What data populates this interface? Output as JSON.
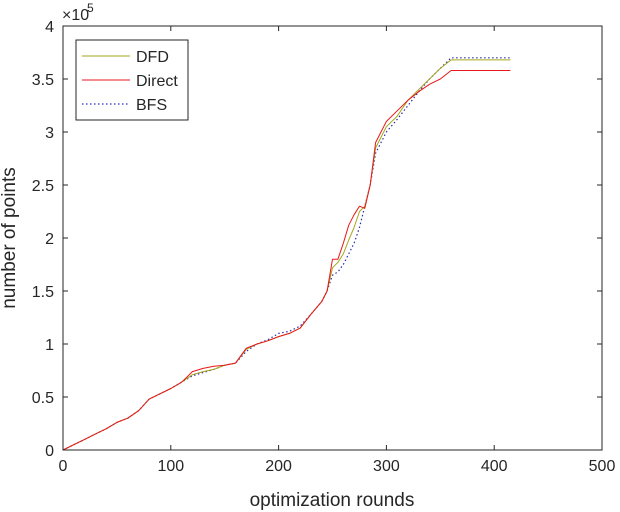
{
  "chart_data": {
    "type": "line",
    "title": "",
    "xlabel": "optimization rounds",
    "ylabel": "number of points",
    "xlim": [
      0,
      500
    ],
    "ylim": [
      0,
      4
    ],
    "y_exponent_label": "×10",
    "y_exponent_value": "5",
    "x_ticks": [
      0,
      100,
      200,
      300,
      400,
      500
    ],
    "x_tick_labels": [
      "0",
      "100",
      "200",
      "300",
      "400",
      "500"
    ],
    "y_ticks": [
      0,
      0.5,
      1,
      1.5,
      2,
      2.5,
      3,
      3.5,
      4
    ],
    "y_tick_labels": [
      "0",
      "0.5",
      "1",
      "1.5",
      "2",
      "2.5",
      "3",
      "3.5",
      "4"
    ],
    "grid": false,
    "legend_position": "top-left",
    "series": [
      {
        "name": "DFD",
        "color": "#a6a61c",
        "style": "solid",
        "x": [
          0,
          10,
          20,
          30,
          40,
          50,
          60,
          70,
          80,
          90,
          100,
          110,
          120,
          130,
          140,
          150,
          160,
          170,
          180,
          190,
          200,
          210,
          220,
          230,
          240,
          245,
          250,
          255,
          260,
          265,
          270,
          275,
          280,
          285,
          290,
          300,
          310,
          320,
          330,
          340,
          350,
          360,
          370,
          380,
          390,
          400,
          415
        ],
        "y": [
          0.0,
          0.05,
          0.1,
          0.15,
          0.2,
          0.26,
          0.3,
          0.37,
          0.48,
          0.53,
          0.58,
          0.64,
          0.71,
          0.74,
          0.76,
          0.8,
          0.82,
          0.95,
          1.0,
          1.03,
          1.07,
          1.1,
          1.15,
          1.28,
          1.4,
          1.5,
          1.72,
          1.77,
          1.85,
          1.98,
          2.1,
          2.25,
          2.3,
          2.5,
          2.85,
          3.05,
          3.15,
          3.3,
          3.4,
          3.5,
          3.6,
          3.68,
          3.68,
          3.68,
          3.68,
          3.68,
          3.68
        ]
      },
      {
        "name": "Direct",
        "color": "#e8181b",
        "style": "solid",
        "x": [
          0,
          10,
          20,
          30,
          40,
          50,
          60,
          70,
          80,
          90,
          100,
          110,
          120,
          130,
          140,
          150,
          160,
          170,
          180,
          190,
          200,
          210,
          220,
          230,
          240,
          245,
          250,
          255,
          260,
          265,
          270,
          275,
          280,
          285,
          290,
          300,
          310,
          320,
          330,
          340,
          350,
          360,
          370,
          380,
          390,
          400,
          415
        ],
        "y": [
          0.0,
          0.05,
          0.1,
          0.15,
          0.2,
          0.26,
          0.3,
          0.37,
          0.48,
          0.53,
          0.58,
          0.64,
          0.74,
          0.77,
          0.79,
          0.8,
          0.82,
          0.96,
          1.0,
          1.03,
          1.07,
          1.1,
          1.15,
          1.28,
          1.4,
          1.5,
          1.8,
          1.8,
          1.95,
          2.12,
          2.22,
          2.3,
          2.28,
          2.5,
          2.9,
          3.1,
          3.2,
          3.3,
          3.38,
          3.45,
          3.5,
          3.58,
          3.58,
          3.58,
          3.58,
          3.58,
          3.58
        ]
      },
      {
        "name": "BFS",
        "color": "#2b2bb0",
        "style": "dotted",
        "x": [
          0,
          10,
          20,
          30,
          40,
          50,
          60,
          70,
          80,
          90,
          100,
          110,
          120,
          130,
          140,
          150,
          160,
          170,
          180,
          190,
          200,
          210,
          220,
          230,
          240,
          245,
          250,
          255,
          260,
          265,
          270,
          275,
          280,
          285,
          290,
          300,
          310,
          320,
          330,
          340,
          350,
          360,
          370,
          380,
          390,
          400,
          415
        ],
        "y": [
          0.0,
          0.05,
          0.1,
          0.15,
          0.2,
          0.26,
          0.3,
          0.37,
          0.48,
          0.53,
          0.58,
          0.64,
          0.7,
          0.73,
          0.76,
          0.8,
          0.82,
          0.93,
          1.0,
          1.04,
          1.1,
          1.12,
          1.17,
          1.28,
          1.4,
          1.5,
          1.65,
          1.68,
          1.75,
          1.85,
          1.95,
          2.1,
          2.3,
          2.5,
          2.8,
          3.0,
          3.12,
          3.25,
          3.38,
          3.5,
          3.6,
          3.7,
          3.7,
          3.7,
          3.7,
          3.7,
          3.7
        ]
      }
    ]
  }
}
